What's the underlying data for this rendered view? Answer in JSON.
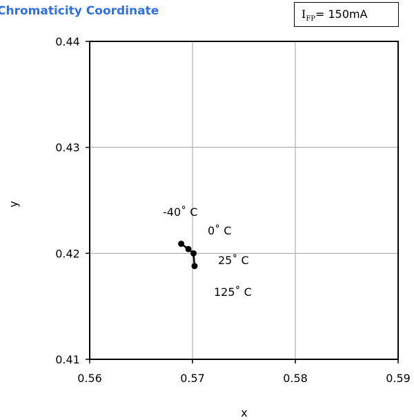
{
  "header": {
    "title": "Chromaticity Coordinate",
    "condition": {
      "symbol": "I",
      "subscript": "FP",
      "value": "= 150mA"
    }
  },
  "chart_data": {
    "type": "line",
    "title": "Chromaticity Coordinate",
    "xlabel": "x",
    "ylabel": "y",
    "xlim": [
      0.56,
      0.59
    ],
    "ylim": [
      0.41,
      0.44
    ],
    "x_ticks": [
      "0.56",
      "0.57",
      "0.58",
      "0.59"
    ],
    "y_ticks": [
      "0.41",
      "0.42",
      "0.43",
      "0.44"
    ],
    "grid": true,
    "series": [
      {
        "color": "#000000",
        "points": [
          {
            "x": 0.5689,
            "y": 0.4209
          },
          {
            "x": 0.5696,
            "y": 0.4204
          },
          {
            "x": 0.5701,
            "y": 0.42
          },
          {
            "x": 0.5702,
            "y": 0.4188
          }
        ]
      }
    ],
    "annotations": [
      {
        "text": "-40˚ C"
      },
      {
        "text": "0˚ C"
      },
      {
        "text": "25˚ C"
      },
      {
        "text": "125˚ C"
      }
    ]
  }
}
